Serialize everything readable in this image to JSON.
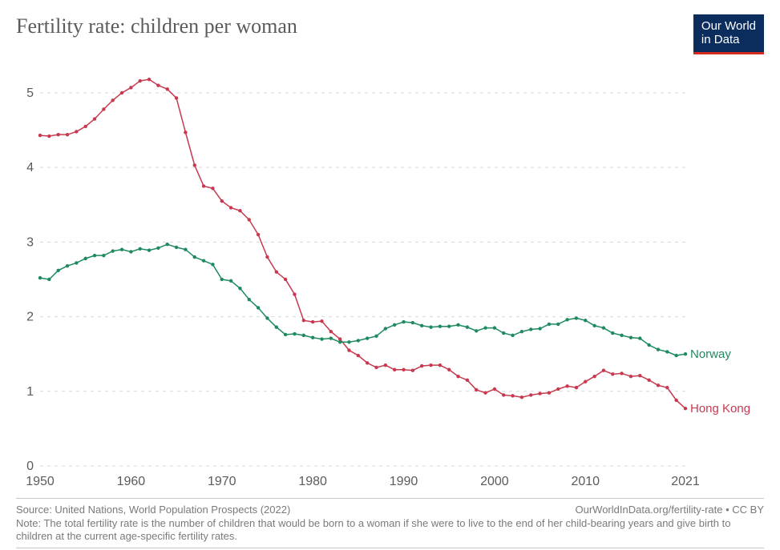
{
  "chart": {
    "type": "line",
    "title": "Fertility rate: children per woman",
    "logo_line1": "Our World",
    "logo_line2": "in Data",
    "background_color": "#ffffff",
    "grid_color": "#d8d8d8",
    "axis_text_color": "#5b5b5b",
    "title_color": "#5b5b5b",
    "title_fontsize": 26,
    "tick_fontsize": 16,
    "label_fontsize": 15,
    "line_width": 1.5,
    "marker_radius": 2.2,
    "x": {
      "min": 1950,
      "max": 2021,
      "ticks": [
        1950,
        1960,
        1970,
        1980,
        1990,
        2000,
        2010,
        2021
      ]
    },
    "y": {
      "min": 0,
      "max": 5.3,
      "ticks": [
        0,
        1,
        2,
        3,
        4,
        5
      ]
    },
    "years": [
      1950,
      1951,
      1952,
      1953,
      1954,
      1955,
      1956,
      1957,
      1958,
      1959,
      1960,
      1961,
      1962,
      1963,
      1964,
      1965,
      1966,
      1967,
      1968,
      1969,
      1970,
      1971,
      1972,
      1973,
      1974,
      1975,
      1976,
      1977,
      1978,
      1979,
      1980,
      1981,
      1982,
      1983,
      1984,
      1985,
      1986,
      1987,
      1988,
      1989,
      1990,
      1991,
      1992,
      1993,
      1994,
      1995,
      1996,
      1997,
      1998,
      1999,
      2000,
      2001,
      2002,
      2003,
      2004,
      2005,
      2006,
      2007,
      2008,
      2009,
      2010,
      2011,
      2012,
      2013,
      2014,
      2015,
      2016,
      2017,
      2018,
      2019,
      2020,
      2021
    ],
    "series": [
      {
        "name": "Hong Kong",
        "color": "#c7394e",
        "values": [
          4.43,
          4.42,
          4.44,
          4.44,
          4.48,
          4.55,
          4.65,
          4.78,
          4.9,
          5.0,
          5.07,
          5.16,
          5.18,
          5.1,
          5.05,
          4.93,
          4.47,
          4.03,
          3.75,
          3.72,
          3.55,
          3.46,
          3.42,
          3.3,
          3.1,
          2.8,
          2.6,
          2.5,
          2.3,
          1.95,
          1.93,
          1.94,
          1.8,
          1.7,
          1.55,
          1.48,
          1.38,
          1.32,
          1.35,
          1.29,
          1.29,
          1.28,
          1.34,
          1.35,
          1.35,
          1.29,
          1.2,
          1.15,
          1.02,
          0.98,
          1.03,
          0.95,
          0.94,
          0.92,
          0.95,
          0.97,
          0.98,
          1.03,
          1.07,
          1.05,
          1.13,
          1.2,
          1.28,
          1.23,
          1.24,
          1.2,
          1.21,
          1.15,
          1.08,
          1.05,
          0.88,
          0.77
        ]
      },
      {
        "name": "Norway",
        "color": "#1d8a5f",
        "values": [
          2.52,
          2.5,
          2.62,
          2.68,
          2.72,
          2.78,
          2.82,
          2.82,
          2.88,
          2.9,
          2.87,
          2.91,
          2.89,
          2.92,
          2.97,
          2.93,
          2.9,
          2.8,
          2.75,
          2.7,
          2.5,
          2.48,
          2.38,
          2.23,
          2.12,
          1.98,
          1.86,
          1.76,
          1.77,
          1.75,
          1.72,
          1.7,
          1.71,
          1.66,
          1.66,
          1.68,
          1.71,
          1.74,
          1.84,
          1.89,
          1.93,
          1.92,
          1.88,
          1.86,
          1.87,
          1.87,
          1.89,
          1.86,
          1.81,
          1.85,
          1.85,
          1.78,
          1.75,
          1.8,
          1.83,
          1.84,
          1.9,
          1.9,
          1.96,
          1.98,
          1.95,
          1.88,
          1.85,
          1.78,
          1.75,
          1.72,
          1.71,
          1.62,
          1.56,
          1.53,
          1.48,
          1.5
        ]
      }
    ],
    "source": "Source: United Nations, World Population Prospects (2022)",
    "attribution": "OurWorldInData.org/fertility-rate • CC BY",
    "note": "Note: The total fertility rate is the number of children that would be born to a woman if she were to live to the end of her child-bearing years and give birth to children at the current age-specific fertility rates."
  }
}
